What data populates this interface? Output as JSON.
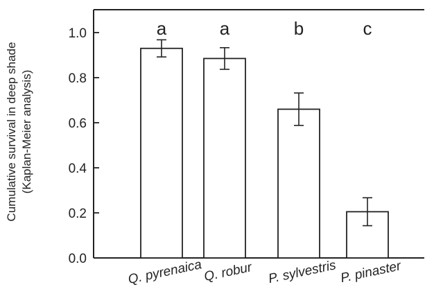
{
  "chart_data": {
    "type": "bar",
    "categories": [
      "Q. pyrenaica",
      "Q. robur",
      "P. sylvestris",
      "P. pinaster"
    ],
    "values": [
      0.93,
      0.885,
      0.66,
      0.205
    ],
    "errors": [
      0.038,
      0.048,
      0.072,
      0.062
    ],
    "significance_letters": [
      "a",
      "a",
      "b",
      "c"
    ],
    "ylabel_line1": "Cumulative survival in deep shade",
    "ylabel_line2": "(Kaplan-Meier analysis)",
    "xlabel": "",
    "title": "",
    "ylim": [
      0,
      1.1
    ],
    "yticks": [
      0.0,
      0.2,
      0.4,
      0.6,
      0.8,
      1.0
    ],
    "ytick_labels": [
      "0.0",
      "0.2",
      "0.4",
      "0.6",
      "0.8",
      "1.0"
    ],
    "grid": false,
    "colors": {
      "bar_fill": "#ffffff",
      "bar_stroke": "#222222",
      "axis": "#222222"
    }
  }
}
